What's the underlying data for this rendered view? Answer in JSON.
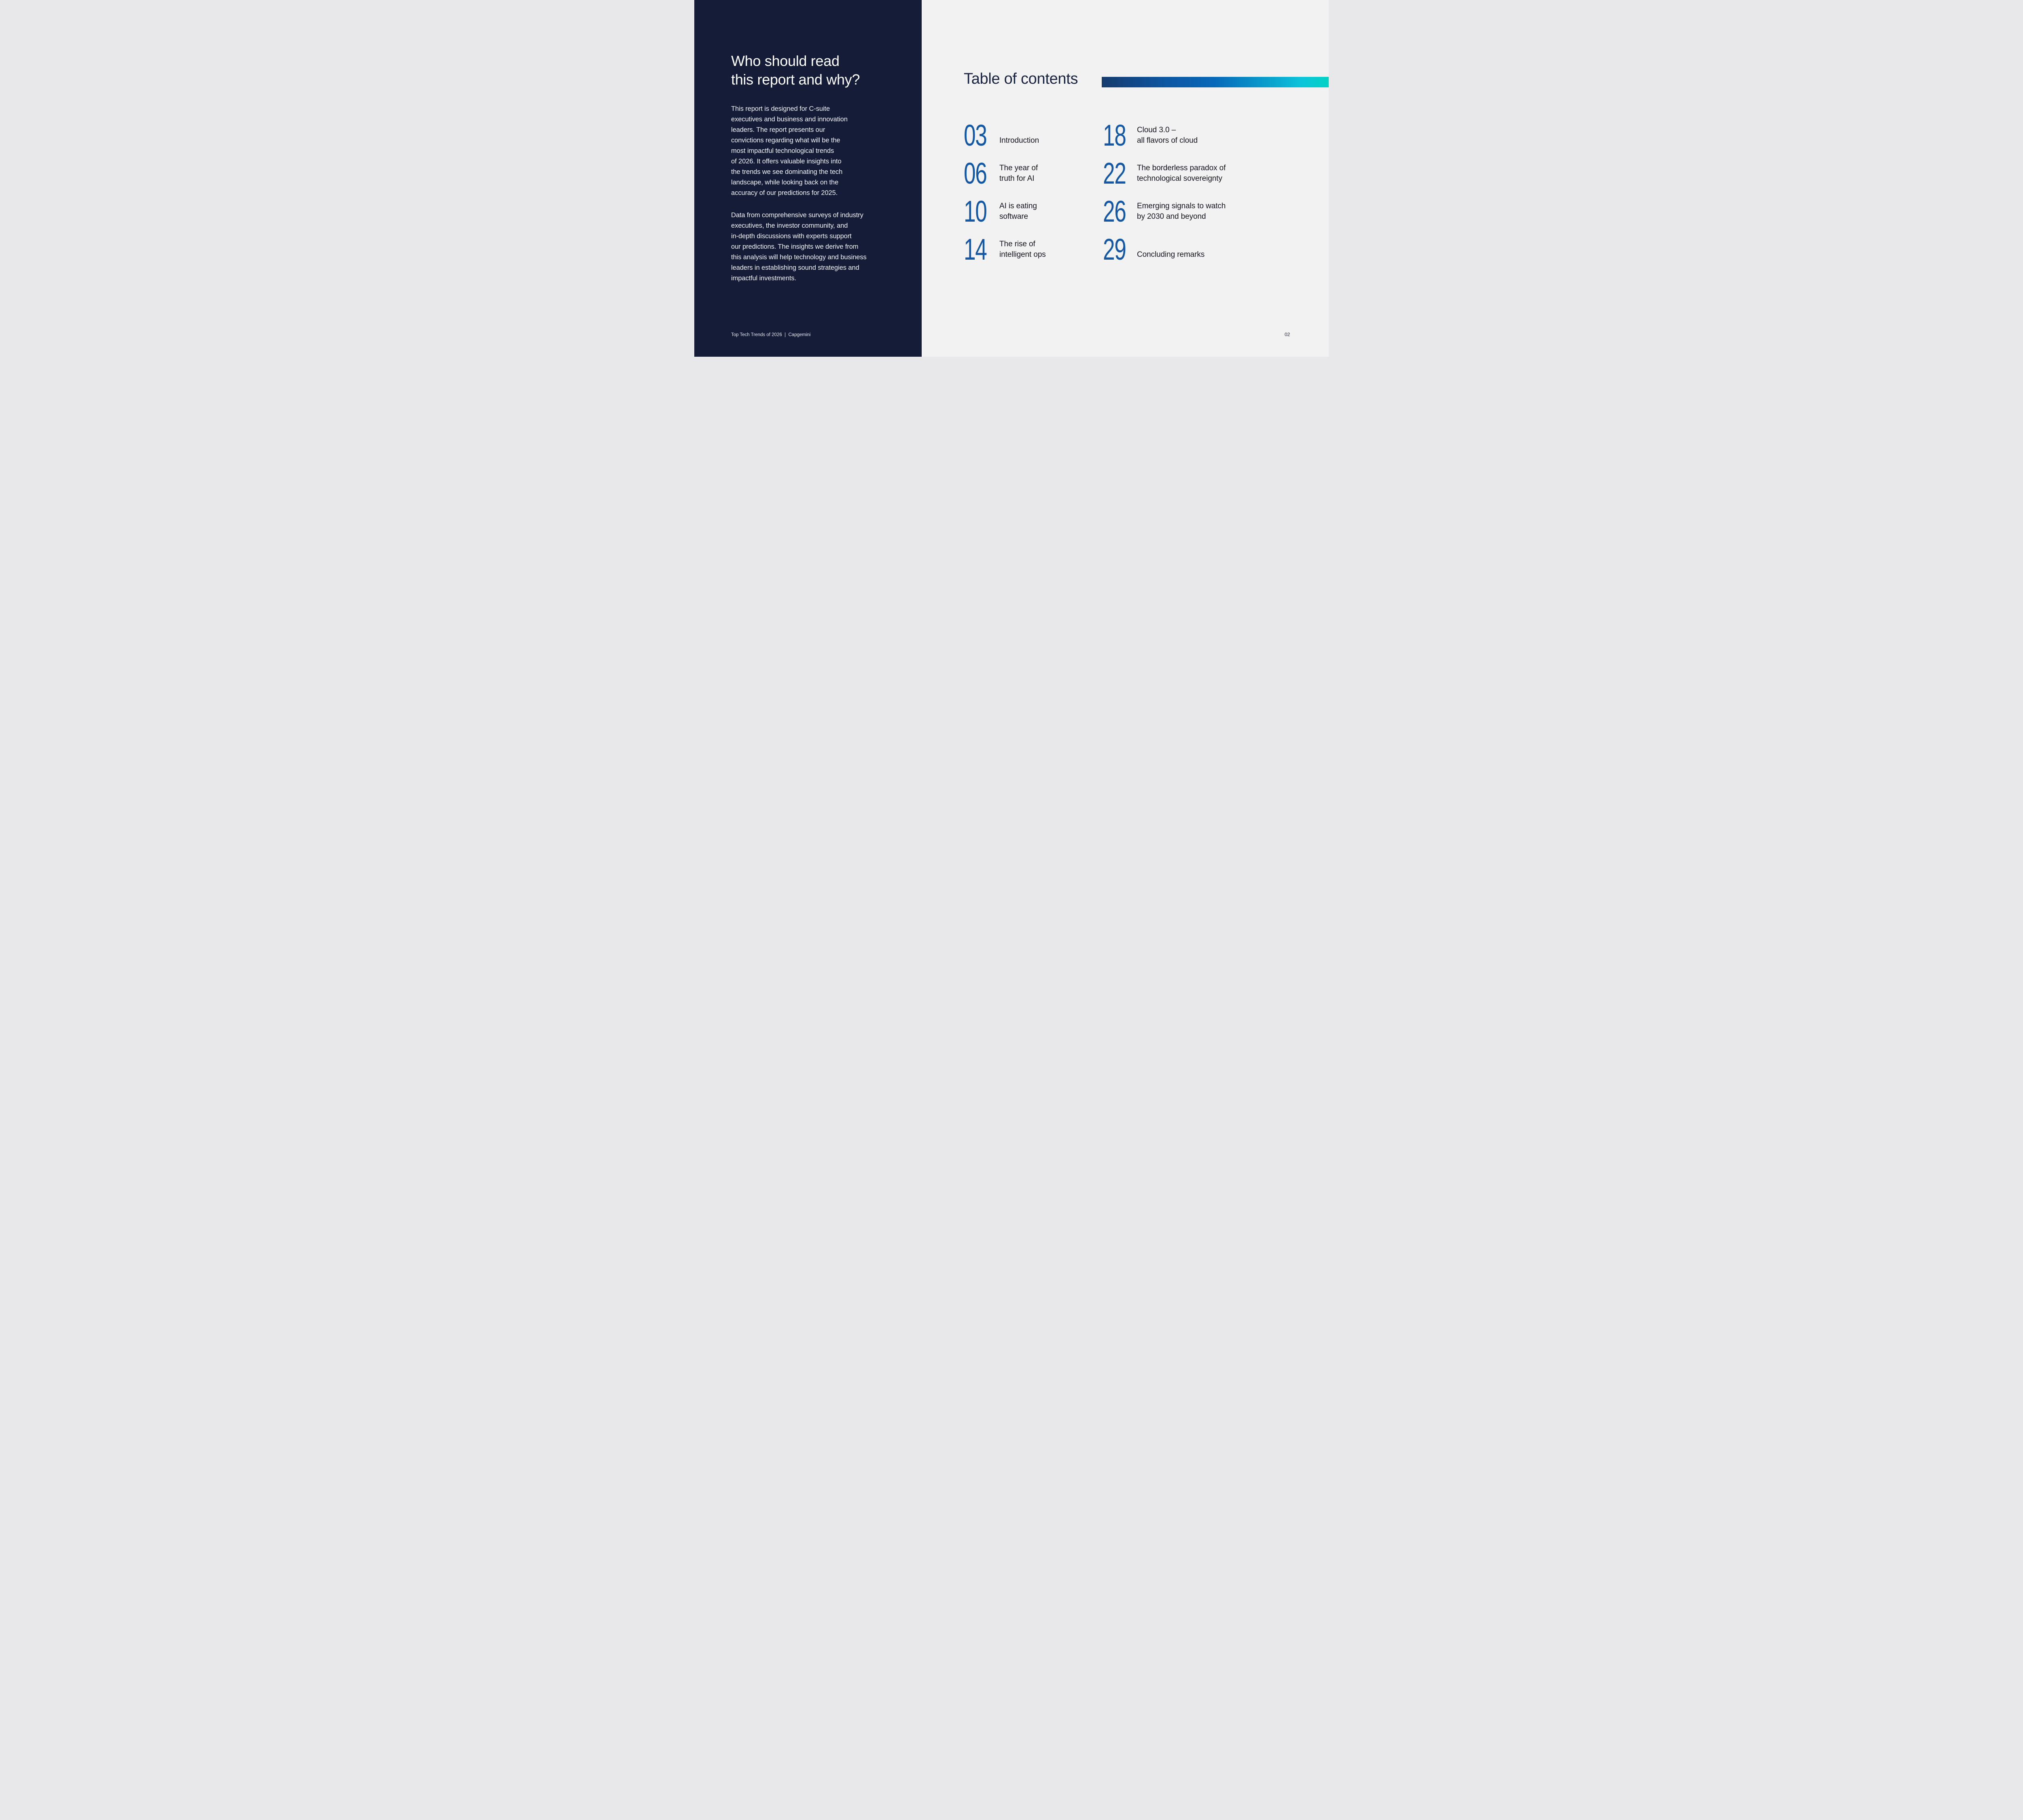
{
  "left_panel": {
    "background_color": "#151c38",
    "heading": "Who should read\nthis report and why?",
    "paragraph1": "This report is designed for C-suite\nexecutives and business and innovation\nleaders. The report presents our\nconvictions regarding what will be the\nmost impactful technological trends\nof 2026. It offers valuable insights into\nthe trends we see dominating the tech\nlandscape, while looking back on the\naccuracy of our predictions for 2025.",
    "paragraph2": "Data from comprehensive surveys of industry\nexecutives, the investor community, and\nin-depth discussions with experts support\nour predictions. The insights we derive from\nthis analysis will help technology and business\nleaders in establishing sound strategies and\nimpactful investments.",
    "footer": "Top Tech Trends of 2026  |  Capgemini"
  },
  "content": {
    "title": "Table of contents",
    "page_number": "02",
    "number_color": "#1358a7",
    "accent_gradient": [
      "#163a6e",
      "#0d56a2",
      "#0769ba",
      "#0a9ccc",
      "#0cc4da",
      "#03d2c5"
    ],
    "entries": [
      {
        "number": "03",
        "label": "Introduction"
      },
      {
        "number": "06",
        "label": "The year of\ntruth for AI"
      },
      {
        "number": "10",
        "label": "AI is eating\nsoftware"
      },
      {
        "number": "14",
        "label": "The rise of\nintelligent ops"
      },
      {
        "number": "18",
        "label": "Cloud 3.0 –\nall flavors of cloud"
      },
      {
        "number": "22",
        "label": "The borderless paradox of\ntechnological sovereignty"
      },
      {
        "number": "26",
        "label": "Emerging signals to watch\nby 2030 and beyond"
      },
      {
        "number": "29",
        "label": "Concluding remarks"
      }
    ]
  }
}
